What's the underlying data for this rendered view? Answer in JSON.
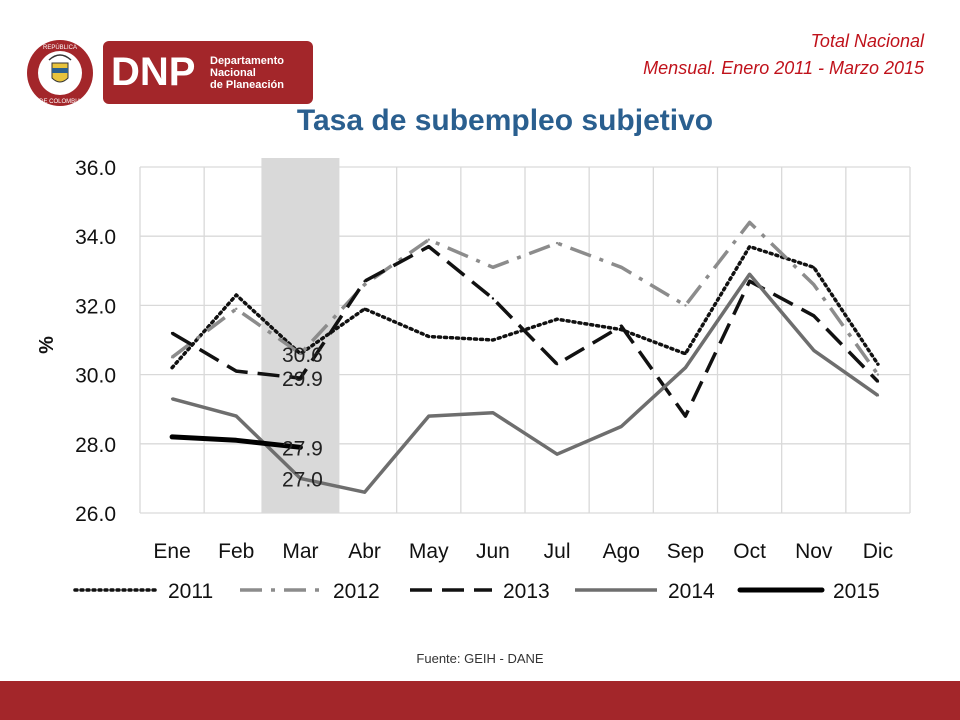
{
  "header": {
    "logo": {
      "seal_text": [
        "REPÚBLICA",
        "DE COLOMBIA"
      ],
      "acronym": "DNP",
      "name_lines": [
        "Departamento",
        "Nacional",
        "de Planeación"
      ]
    },
    "subtitle_lines": [
      "Total Nacional",
      "Mensual. Enero 2011 -  Marzo 2015"
    ]
  },
  "colors": {
    "brand_red": "#a3262a",
    "subtitle_red": "#c0121b",
    "title_blue": "#2a5f8f",
    "highlight_gray": "#d9d9d9"
  },
  "footer": {
    "source": "Fuente: GEIH - DANE"
  },
  "chart_data": {
    "type": "line",
    "title": "Tasa de subempleo subjetivo",
    "ylabel": "%",
    "ylim": [
      26,
      36
    ],
    "yticks": [
      "26.0",
      "28.0",
      "30.0",
      "32.0",
      "34.0",
      "36.0"
    ],
    "categories": [
      "Ene",
      "Feb",
      "Mar",
      "Abr",
      "May",
      "Jun",
      "Jul",
      "Ago",
      "Sep",
      "Oct",
      "Nov",
      "Dic"
    ],
    "grid": true,
    "legend_position": "bottom",
    "highlight_category": "Mar",
    "series": [
      {
        "name": "2011",
        "style": "dotted",
        "color": "#111111",
        "values": [
          30.2,
          32.3,
          30.6,
          31.9,
          31.1,
          31.0,
          31.6,
          31.3,
          30.6,
          33.7,
          33.1,
          30.3
        ]
      },
      {
        "name": "2012",
        "style": "dashdot",
        "color": "#8c8c8c",
        "values": [
          30.5,
          31.9,
          30.6,
          32.6,
          33.9,
          33.1,
          33.8,
          33.1,
          32.0,
          34.4,
          32.6,
          30.0
        ]
      },
      {
        "name": "2013",
        "style": "dashed",
        "color": "#111111",
        "values": [
          31.2,
          30.1,
          29.9,
          32.7,
          33.7,
          32.2,
          30.3,
          31.4,
          28.8,
          32.7,
          31.7,
          29.8
        ]
      },
      {
        "name": "2014",
        "style": "solid",
        "color": "#6e6e6e",
        "values": [
          29.3,
          28.8,
          27.0,
          26.6,
          28.8,
          28.9,
          27.7,
          28.5,
          30.2,
          32.9,
          30.7,
          29.4
        ]
      },
      {
        "name": "2015",
        "style": "thick",
        "color": "#000000",
        "values": [
          28.2,
          28.1,
          27.9,
          null,
          null,
          null,
          null,
          null,
          null,
          null,
          null,
          null
        ]
      }
    ],
    "annotations": [
      {
        "category": "Mar",
        "value": 30.6,
        "text": "30.6"
      },
      {
        "category": "Mar",
        "value": 29.9,
        "text": "29.9"
      },
      {
        "category": "Mar",
        "value": 27.9,
        "text": "27.9"
      },
      {
        "category": "Mar",
        "value": 27.0,
        "text": "27.0"
      }
    ]
  }
}
